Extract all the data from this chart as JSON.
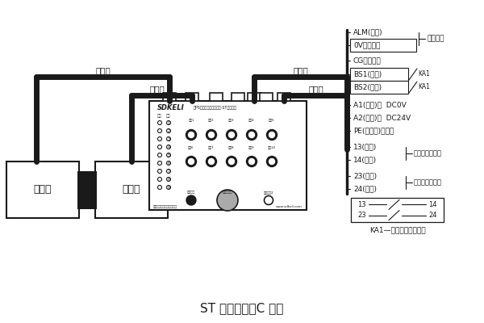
{
  "title": "ST 型控制器（C 型）",
  "bg_color": "#ffffff",
  "line_color": "#1a1a1a",
  "labels": {
    "chuanshuxian1": "传输线",
    "chuanshuxian2": "传输线",
    "xinhaoxian": "信号线",
    "dianyuanxian": "电源线",
    "fasheqi": "发射器",
    "jieshouqi": "接收器",
    "alm": "ALM(黑色)",
    "ov": "0V（绻色）",
    "cg": "CG（红色）",
    "bs1": "BS1(蓝色)",
    "bs2": "BS2(棕色)",
    "ka1": "KA1",
    "jiebaoJingqi": "接报警器",
    "a1": "A1(白色)：  DC0V",
    "a2": "A2(红色)：  DC24V",
    "pe": "PE(黄续色)：接地",
    "ch13": "13(蓝色)",
    "ch14": "14(蓝色)",
    "ch23": "23(棕色)",
    "ch24": "24(棕色)",
    "jiekuaix1": "接快下控制输出",
    "jiekuaix2": "接快下控制输出",
    "relay": "KA1—折弯机慢下继电器",
    "brand": "SDKELI",
    "brand_sub": "光PS型激光安全保护装置·ST型控制器",
    "footer_l": "山东凯力光电技术有限公司",
    "footer_r": "www.sdkeli.com",
    "num13": "13",
    "num14": "14",
    "num23": "23",
    "num24": "24"
  }
}
